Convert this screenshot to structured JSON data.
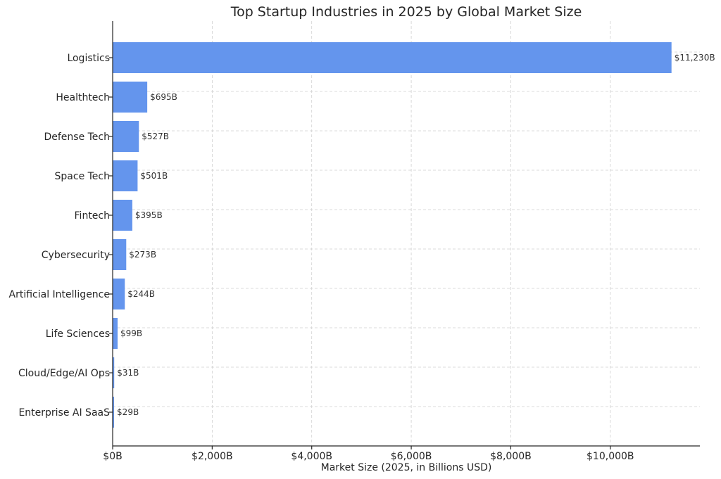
{
  "chart_data": {
    "type": "bar",
    "orientation": "horizontal",
    "title": "Top Startup Industries in 2025 by Global Market Size",
    "xlabel": "Market Size (2025, in Billions USD)",
    "ylabel": "",
    "categories": [
      "Logistics",
      "Healthtech",
      "Defense Tech",
      "Space Tech",
      "Fintech",
      "Cybersecurity",
      "Artificial Intelligence",
      "Life Sciences",
      "Cloud/Edge/AI Ops",
      "Enterprise AI SaaS"
    ],
    "values": [
      11230,
      695,
      527,
      501,
      395,
      273,
      244,
      99,
      31,
      29
    ],
    "data_labels": [
      "$11,230B",
      "$695B",
      "$527B",
      "$501B",
      "$395B",
      "$273B",
      "$244B",
      "$99B",
      "$31B",
      "$29B"
    ],
    "xticks": [
      0,
      2000,
      4000,
      6000,
      8000,
      10000
    ],
    "xtick_labels": [
      "$0B",
      "$2,000B",
      "$4,000B",
      "$6,000B",
      "$8,000B",
      "$10,000B"
    ],
    "xlim": [
      0,
      11800
    ],
    "grid": true,
    "colors": {
      "bar": "#6495ed",
      "text": "#262626"
    }
  }
}
